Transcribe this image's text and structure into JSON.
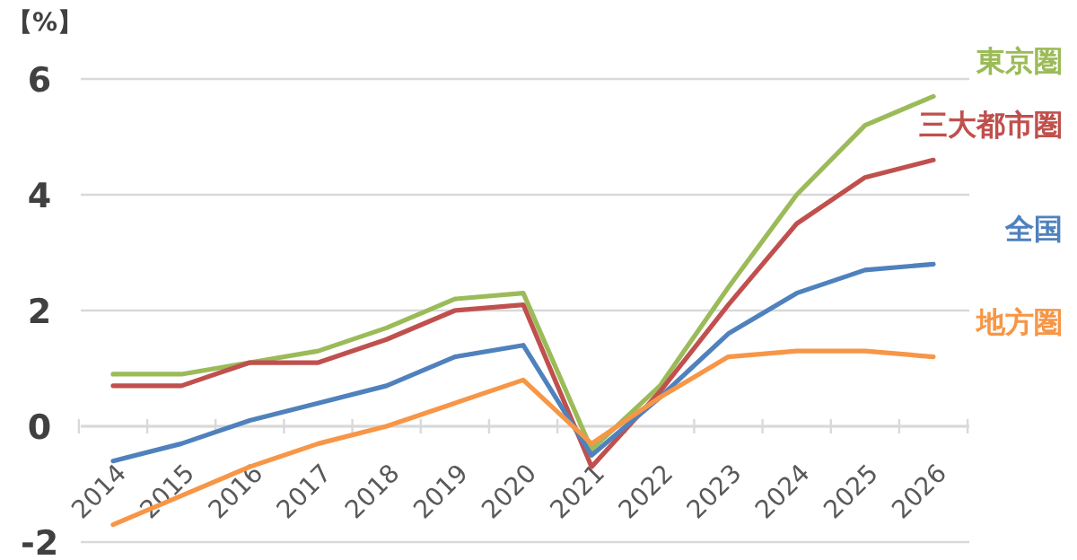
{
  "chart_data": {
    "type": "line",
    "ylabel": "【%】",
    "categories": [
      "2014",
      "2015",
      "2016",
      "2017",
      "2018",
      "2019",
      "2020",
      "2021",
      "2022",
      "2023",
      "2024",
      "2025",
      "2026"
    ],
    "series": [
      {
        "name": "東京圏",
        "color": "#9bbb59",
        "values": [
          0.9,
          0.9,
          1.1,
          1.3,
          1.7,
          2.2,
          2.3,
          -0.4,
          0.7,
          2.4,
          4.0,
          5.2,
          5.7
        ]
      },
      {
        "name": "三大都市圏",
        "color": "#c0504d",
        "values": [
          0.7,
          0.7,
          1.1,
          1.1,
          1.5,
          2.0,
          2.1,
          -0.7,
          0.6,
          2.1,
          3.5,
          4.3,
          4.6
        ]
      },
      {
        "name": "全国",
        "color": "#4f81bd",
        "values": [
          -0.6,
          -0.3,
          0.1,
          0.4,
          0.7,
          1.2,
          1.4,
          -0.5,
          0.5,
          1.6,
          2.3,
          2.7,
          2.8
        ]
      },
      {
        "name": "地方圏",
        "color": "#f79646",
        "values": [
          -1.7,
          -1.2,
          -0.7,
          -0.3,
          0.0,
          0.4,
          0.8,
          -0.3,
          0.5,
          1.2,
          1.3,
          1.3,
          1.2
        ]
      }
    ],
    "ylim": [
      -2,
      6
    ],
    "yticks": [
      -2,
      0,
      2,
      4,
      6
    ],
    "grid": "y"
  }
}
